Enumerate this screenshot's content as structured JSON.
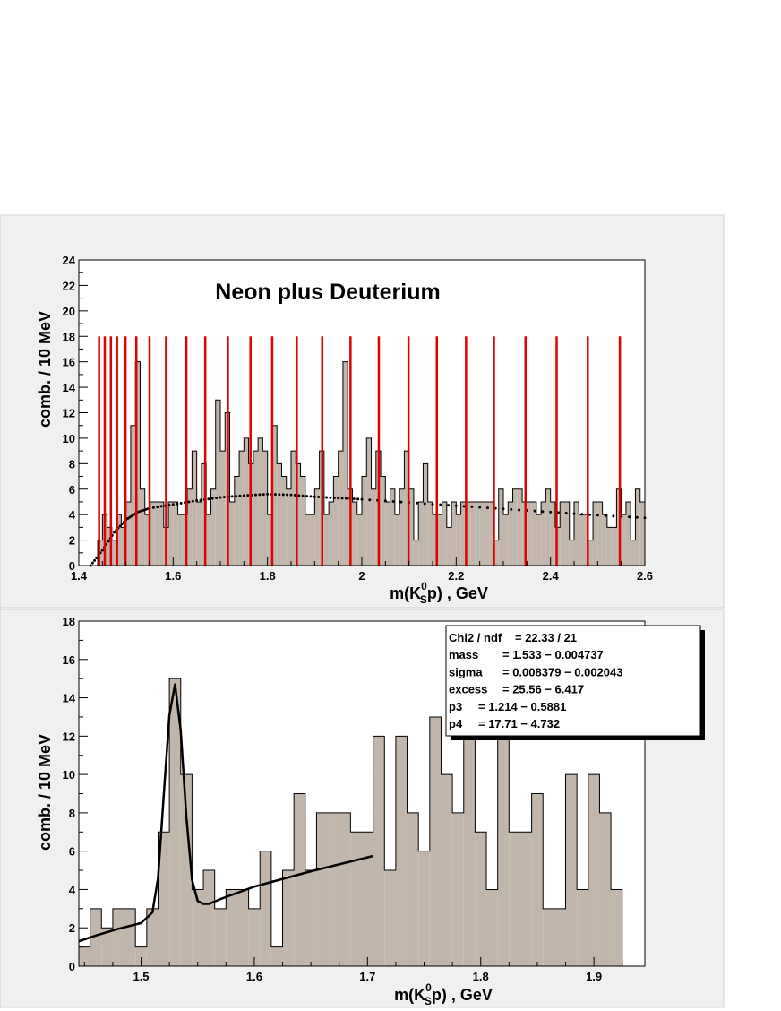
{
  "chart_data": [
    {
      "type": "bar",
      "title": "Neon plus Deuterium",
      "xlabel": "m(K0Sp) , GeV",
      "xlabel_parts": {
        "pre": "m(K",
        "sup": "0",
        "sub": "S",
        "post": "p) , GeV"
      },
      "ylabel": "comb. / 10 MeV",
      "xlim": [
        1.4,
        2.6
      ],
      "ylim": [
        0,
        24
      ],
      "xticks": [
        "1.4",
        "1.6",
        "1.8",
        "2",
        "2.2",
        "2.4",
        "2.6"
      ],
      "yticks": [
        "0",
        "2",
        "4",
        "6",
        "8",
        "10",
        "12",
        "14",
        "16",
        "18",
        "20",
        "22",
        "24"
      ],
      "bin_width": 0.01,
      "values": [
        0,
        0,
        0,
        0,
        2,
        4,
        3,
        2,
        4,
        3,
        5,
        11,
        16,
        6,
        4,
        5,
        5,
        5,
        3,
        5,
        5,
        4,
        4,
        6,
        9,
        5,
        8,
        4,
        6,
        13,
        9,
        12,
        5,
        7,
        9,
        10,
        8,
        9,
        10,
        9,
        4,
        11,
        8,
        7,
        6,
        9,
        8,
        7,
        4,
        4,
        6,
        9,
        4,
        5,
        7,
        9,
        16,
        6,
        5,
        4,
        7,
        10,
        6,
        9,
        7,
        5,
        6,
        4,
        6,
        9,
        6,
        2,
        5,
        8,
        5,
        4,
        4,
        5,
        3,
        5,
        4,
        5,
        5,
        5,
        5,
        5,
        5,
        5,
        2,
        6,
        4,
        5,
        6,
        6,
        5,
        5,
        5,
        4,
        5,
        6,
        5,
        3,
        5,
        5,
        2,
        5,
        4,
        4,
        2,
        5,
        5,
        4,
        3,
        3,
        6,
        4,
        5,
        2,
        6,
        5,
        4
      ],
      "background_fit_style": "dotted",
      "background_fit_x": [
        1.425,
        1.45,
        1.475,
        1.5,
        1.525,
        1.55,
        1.6,
        1.65,
        1.7,
        1.75,
        1.8,
        1.85,
        1.9,
        1.95,
        2.0,
        2.1,
        2.2,
        2.3,
        2.4,
        2.5,
        2.6
      ],
      "background_fit_y": [
        0,
        1.2,
        2.6,
        3.6,
        4.2,
        4.5,
        4.8,
        5.1,
        5.35,
        5.5,
        5.6,
        5.55,
        5.4,
        5.3,
        5.2,
        4.95,
        4.7,
        4.45,
        4.2,
        3.95,
        3.75
      ],
      "red_lines_x": [
        1.443,
        1.455,
        1.468,
        1.481,
        1.499,
        1.522,
        1.55,
        1.585,
        1.628,
        1.668,
        1.716,
        1.764,
        1.81,
        1.862,
        1.916,
        1.976,
        2.036,
        2.099,
        2.159,
        2.221,
        2.28,
        2.347,
        2.413,
        2.479,
        2.547
      ],
      "red_lines_height": 18,
      "colors": {
        "fill": "#c0b6ab",
        "red": "#e00000",
        "pad": "#f0f0f0"
      }
    },
    {
      "type": "bar",
      "title": "",
      "xlabel": "m(K0Sp) , GeV",
      "xlabel_parts": {
        "pre": "m(K",
        "sup": "0",
        "sub": "S",
        "post": "p) , GeV"
      },
      "ylabel": "comb. / 10 MeV",
      "xlim": [
        1.445,
        1.945
      ],
      "ylim": [
        0,
        18
      ],
      "xticks": [
        "1.5",
        "1.6",
        "1.7",
        "1.8",
        "1.9"
      ],
      "yticks": [
        "0",
        "2",
        "4",
        "6",
        "8",
        "10",
        "12",
        "14",
        "16",
        "18"
      ],
      "bin_width": 0.01,
      "values": [
        1,
        3,
        2,
        3,
        3,
        1,
        3,
        7,
        15,
        10,
        4,
        5,
        3,
        4,
        4,
        3,
        6,
        1,
        5,
        9,
        5,
        8,
        8,
        8,
        7,
        7,
        12,
        5,
        12,
        8,
        6,
        13,
        10,
        8,
        12,
        7,
        4,
        12,
        7,
        7,
        9,
        3,
        3,
        10,
        4,
        10,
        8,
        4
      ],
      "fit_x": [
        1.445,
        1.46,
        1.48,
        1.5,
        1.51,
        1.515,
        1.52,
        1.525,
        1.53,
        1.535,
        1.54,
        1.545,
        1.55,
        1.555,
        1.56,
        1.57,
        1.6,
        1.65,
        1.705
      ],
      "fit_y": [
        1.3,
        1.6,
        1.95,
        2.25,
        2.8,
        4.6,
        8.9,
        13.1,
        14.7,
        12.3,
        7.8,
        4.5,
        3.4,
        3.25,
        3.25,
        3.5,
        4.15,
        4.95,
        5.75
      ],
      "stats_box": [
        {
          "label": "Chi2 / ndf",
          "value": "= 22.33 / 21"
        },
        {
          "label": "mass",
          "value": "= 1.533 − 0.004737"
        },
        {
          "label": "sigma",
          "value": "= 0.008379 − 0.002043"
        },
        {
          "label": "excess",
          "value": "= 25.56 − 6.417"
        },
        {
          "label": "p3",
          "value": "= 1.214 − 0.5881"
        },
        {
          "label": "p4",
          "value": "= 17.71 − 4.732"
        }
      ],
      "colors": {
        "fill": "#c0b6ab",
        "pad": "#f0f0f0"
      }
    }
  ]
}
